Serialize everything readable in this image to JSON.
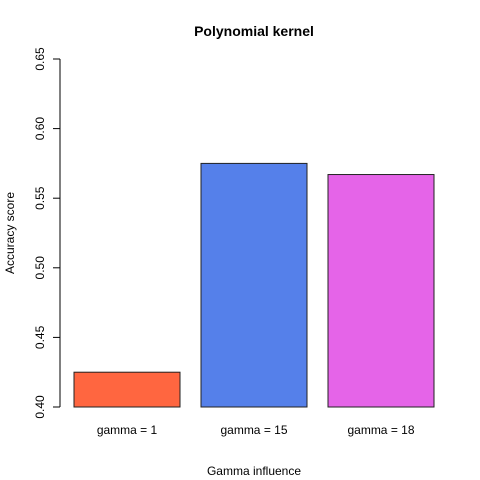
{
  "chart_data": {
    "type": "bar",
    "title": "Polynomial kernel",
    "xlabel": "Gamma influence",
    "ylabel": "Accuracy score",
    "categories": [
      "gamma = 1",
      "gamma = 15",
      "gamma = 18"
    ],
    "values": [
      0.425,
      0.575,
      0.567
    ],
    "colors": [
      "#FF6640",
      "#5580EA",
      "#E564E8"
    ],
    "ylim": [
      0.4,
      0.65
    ],
    "yticks": [
      "0.40",
      "0.45",
      "0.50",
      "0.55",
      "0.60",
      "0.65"
    ],
    "grid": false,
    "legend": "none"
  }
}
